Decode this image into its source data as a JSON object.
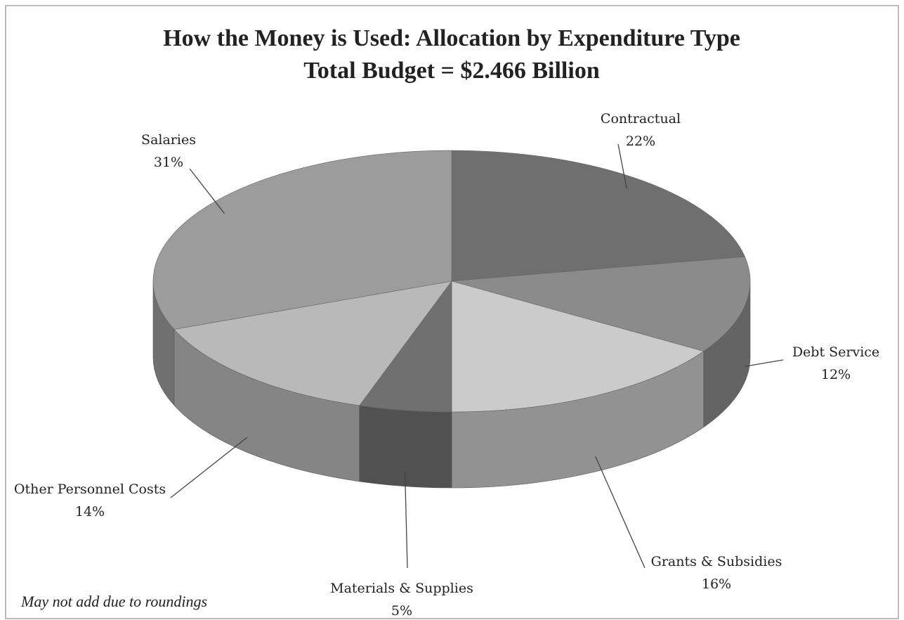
{
  "chart_data": {
    "type": "pie3d",
    "title": "How the Money is Used: Allocation by Expenditure Type",
    "subtitle": "Total Budget = $2.466 Billion",
    "categories": [
      "Contractual",
      "Debt Service",
      "Grants & Subsidies",
      "Materials & Supplies",
      "Other Personnel Costs",
      "Salaries"
    ],
    "values": [
      22,
      12,
      16,
      5,
      14,
      31
    ],
    "value_labels": [
      "22%",
      "12%",
      "16%",
      "5%",
      "14%",
      "31%"
    ],
    "colors": [
      "#6f6f6f",
      "#8b8b8b",
      "#cbcbcb",
      "#707070",
      "#b9b9b9",
      "#9c9c9c"
    ],
    "note": "May not add due to roundings"
  }
}
